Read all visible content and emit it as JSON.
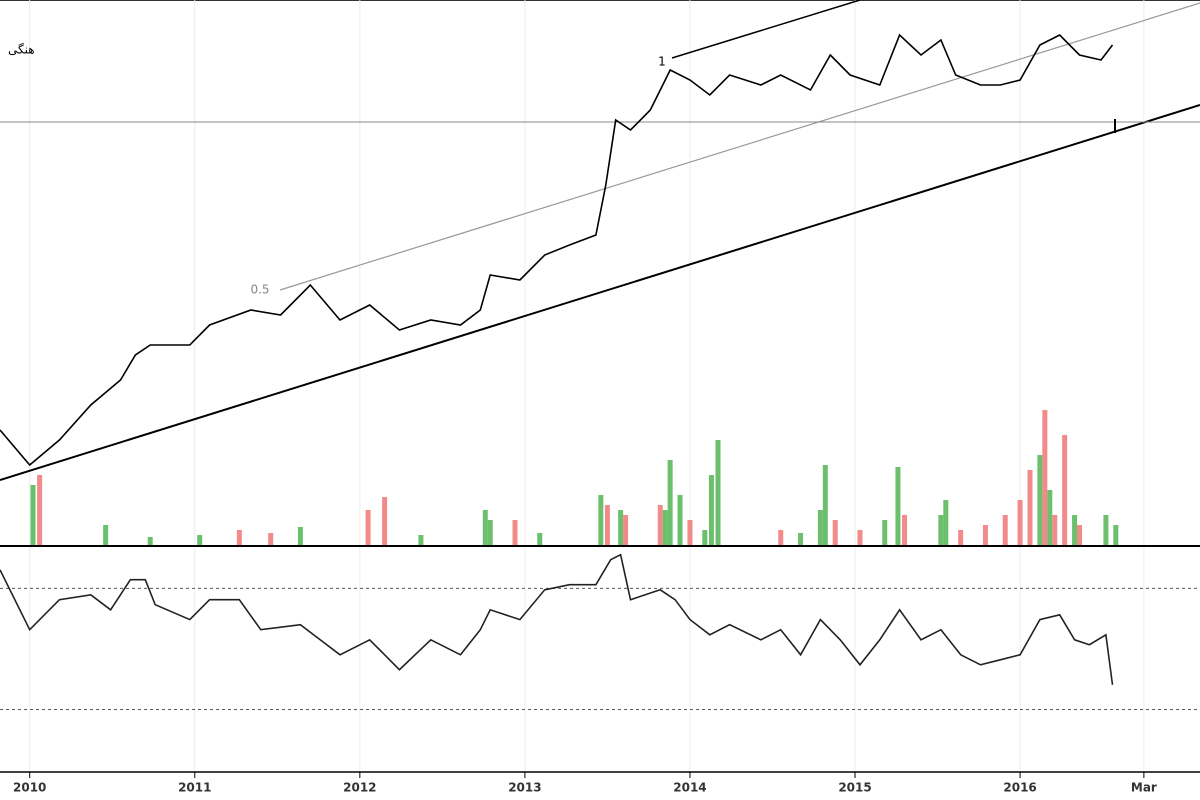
{
  "chart_data": [
    {
      "type": "line",
      "color": "#000000",
      "annotations": [
        "هنگی",
        "0.5",
        "1"
      ],
      "xlim": [
        2009.82,
        2017.09
      ],
      "ylim": [
        0,
        545
      ],
      "x": [
        2009.82,
        2010.0,
        2010.18,
        2010.37,
        2010.55,
        2010.64,
        2010.73,
        2010.97,
        2011.09,
        2011.34,
        2011.52,
        2011.7,
        2011.88,
        2012.06,
        2012.24,
        2012.43,
        2012.61,
        2012.73,
        2012.79,
        2012.97,
        2013.12,
        2013.27,
        2013.43,
        2013.49,
        2013.55,
        2013.64,
        2013.76,
        2013.88,
        2014.0,
        2014.12,
        2014.24,
        2014.43,
        2014.55,
        2014.73,
        2014.85,
        2014.97,
        2015.15,
        2015.27,
        2015.4,
        2015.52,
        2015.61,
        2015.76,
        2015.88,
        2016.0,
        2016.12,
        2016.24,
        2016.36,
        2016.49,
        2016.56
      ],
      "values": [
        115,
        80,
        105,
        140,
        165,
        190,
        200,
        200,
        220,
        235,
        230,
        260,
        225,
        240,
        215,
        225,
        220,
        235,
        270,
        265,
        290,
        300,
        310,
        360,
        425,
        415,
        435,
        475,
        465,
        450,
        470,
        460,
        470,
        455,
        490,
        470,
        460,
        510,
        490,
        505,
        470,
        460,
        460,
        465,
        500,
        510,
        490,
        485,
        500
      ]
    },
    {
      "type": "bar",
      "xlim": [
        2009.82,
        2017.09
      ],
      "ylim": [
        0,
        150
      ],
      "x": [
        2010.02,
        2010.06,
        2010.46,
        2010.73,
        2011.03,
        2011.27,
        2011.46,
        2011.64,
        2012.05,
        2012.15,
        2012.37,
        2012.76,
        2012.79,
        2012.94,
        2013.09,
        2013.46,
        2013.5,
        2013.58,
        2013.61,
        2013.82,
        2013.85,
        2013.88,
        2013.94,
        2014.0,
        2014.09,
        2014.13,
        2014.17,
        2014.55,
        2014.67,
        2014.79,
        2014.82,
        2014.88,
        2015.03,
        2015.18,
        2015.26,
        2015.3,
        2015.52,
        2015.55,
        2015.64,
        2015.79,
        2015.91,
        2016.0,
        2016.06,
        2016.12,
        2016.15,
        2016.18,
        2016.21,
        2016.27,
        2016.33,
        2016.36,
        2016.52,
        2016.58
      ],
      "values": [
        60,
        70,
        20,
        8,
        10,
        15,
        12,
        18,
        35,
        48,
        10,
        35,
        25,
        25,
        12,
        50,
        40,
        35,
        30,
        40,
        35,
        85,
        50,
        25,
        15,
        70,
        105,
        15,
        12,
        35,
        80,
        25,
        15,
        25,
        78,
        30,
        30,
        45,
        15,
        20,
        30,
        45,
        75,
        90,
        135,
        55,
        30,
        110,
        30,
        20,
        30,
        20
      ],
      "colors": [
        "#6cbf6c",
        "#f28a8a",
        "#6cbf6c",
        "#6cbf6c",
        "#6cbf6c",
        "#f28a8a",
        "#f28a8a",
        "#6cbf6c",
        "#f28a8a",
        "#f28a8a",
        "#6cbf6c",
        "#6cbf6c",
        "#6cbf6c",
        "#f28a8a",
        "#6cbf6c",
        "#6cbf6c",
        "#f28a8a",
        "#6cbf6c",
        "#f28a8a",
        "#f28a8a",
        "#6cbf6c",
        "#6cbf6c",
        "#6cbf6c",
        "#f28a8a",
        "#6cbf6c",
        "#6cbf6c",
        "#6cbf6c",
        "#f28a8a",
        "#6cbf6c",
        "#6cbf6c",
        "#6cbf6c",
        "#f28a8a",
        "#f28a8a",
        "#6cbf6c",
        "#6cbf6c",
        "#f28a8a",
        "#6cbf6c",
        "#6cbf6c",
        "#f28a8a",
        "#f28a8a",
        "#f28a8a",
        "#f28a8a",
        "#f28a8a",
        "#6cbf6c",
        "#f28a8a",
        "#6cbf6c",
        "#f28a8a",
        "#f28a8a",
        "#6cbf6c",
        "#f28a8a",
        "#6cbf6c",
        "#6cbf6c"
      ]
    },
    {
      "type": "line",
      "color": "#222222",
      "xlim": [
        2009.82,
        2017.09
      ],
      "ylim": [
        -11,
        100
      ],
      "levels": [
        20,
        80
      ],
      "xticks": [
        2010,
        2011,
        2012,
        2013,
        2014,
        2015,
        2016,
        {
          "value": 2016.75,
          "label": "Mar"
        }
      ],
      "x": [
        2009.82,
        2010.0,
        2010.18,
        2010.37,
        2010.49,
        2010.61,
        2010.7,
        2010.76,
        2010.97,
        2011.09,
        2011.27,
        2011.4,
        2011.64,
        2011.76,
        2011.88,
        2012.06,
        2012.24,
        2012.43,
        2012.61,
        2012.73,
        2012.79,
        2012.97,
        2013.12,
        2013.27,
        2013.43,
        2013.52,
        2013.58,
        2013.64,
        2013.82,
        2013.91,
        2014.0,
        2014.12,
        2014.24,
        2014.43,
        2014.55,
        2014.67,
        2014.79,
        2014.91,
        2015.03,
        2015.15,
        2015.27,
        2015.4,
        2015.52,
        2015.64,
        2015.76,
        2015.88,
        2016.0,
        2016.12,
        2016.24,
        2016.33,
        2016.42,
        2016.52,
        2016.56
      ],
      "values": [
        89.2,
        59.5,
        74.4,
        76.8,
        69.4,
        84.3,
        84.3,
        71.9,
        64.5,
        74.4,
        74.4,
        59.5,
        62.0,
        54.5,
        47.1,
        54.5,
        39.7,
        54.5,
        47.1,
        59.5,
        69.4,
        64.5,
        79.3,
        81.8,
        81.8,
        94.2,
        96.7,
        74.4,
        79.3,
        74.4,
        64.5,
        57.0,
        62.0,
        54.5,
        59.5,
        47.1,
        64.5,
        54.5,
        42.1,
        54.5,
        69.4,
        54.5,
        59.5,
        47.1,
        42.1,
        44.6,
        47.1,
        64.5,
        66.9,
        54.5,
        52.1,
        57.0,
        32.2
      ]
    }
  ]
}
